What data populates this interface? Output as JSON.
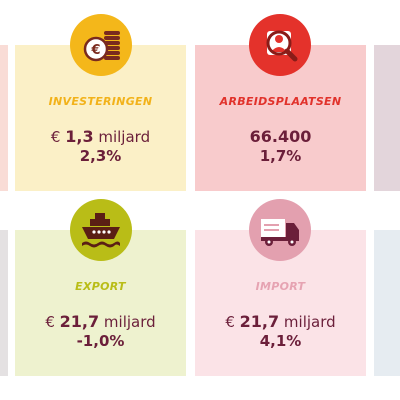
{
  "cards": [
    {
      "key": "investeringen",
      "label": "INVESTERINGEN",
      "currency": "€",
      "value": "1,3",
      "unit": "miljard",
      "change": "2,3%",
      "bg": "#fbf0c7",
      "accent": "#f4b71a",
      "label_color": "#f2b21a",
      "icon": "coins-euro-icon"
    },
    {
      "key": "arbeidsplaatsen",
      "label": "ARBEIDSPLAATSEN",
      "currency": "",
      "value": "66.400",
      "unit": "",
      "change": "1,7%",
      "bg": "#f8cbcc",
      "accent": "#e4322b",
      "label_color": "#e1322b",
      "icon": "person-search-icon"
    },
    {
      "key": "export",
      "label": "EXPORT",
      "currency": "€",
      "value": "21,7",
      "unit": "miljard",
      "change": "-1,0%",
      "bg": "#eef2cf",
      "accent": "#b9bd17",
      "label_color": "#b9bd17",
      "icon": "ship-icon"
    },
    {
      "key": "import",
      "label": "IMPORT",
      "currency": "€",
      "value": "21,7",
      "unit": "miljard",
      "change": "4,1%",
      "bg": "#fbe3e7",
      "accent": "#e3a0af",
      "label_color": "#e6a3b2",
      "icon": "truck-icon"
    }
  ],
  "edge_colors": {
    "top_left": "#f9dcd6",
    "top_right": "#e3d5db",
    "bottom_left": "#e4e1e2",
    "bottom_right": "#e6ecf1"
  }
}
